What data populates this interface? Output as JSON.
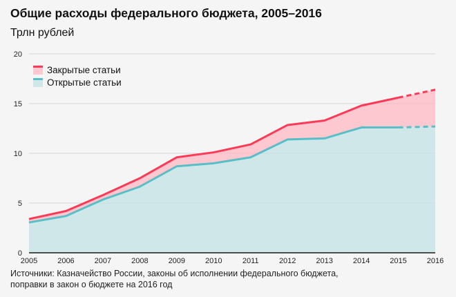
{
  "title": "Общие расходы федерального бюджета, 2005–2016",
  "subtitle": "Трлн рублей",
  "source": [
    "Источники: Казначейство России, законы об исполнении федерального бюджета,",
    "поправки в закон о бюджете на 2016 год"
  ],
  "chart_data": {
    "type": "area",
    "title": "Общие расходы федерального бюджета, 2005–2016",
    "ylabel": "Трлн рублей",
    "x": [
      2005,
      2006,
      2007,
      2008,
      2009,
      2010,
      2011,
      2012,
      2013,
      2014,
      2015,
      2016
    ],
    "xticks": [
      "2005",
      "2006",
      "2007",
      "2008",
      "2009",
      "2010",
      "2011",
      "2012",
      "2013",
      "2014",
      "2015",
      "2016"
    ],
    "ylim": [
      0,
      20
    ],
    "yticks": [
      "0",
      "5",
      "10",
      "15",
      "20"
    ],
    "grid": true,
    "legend": "top-left",
    "dashed_from": 2015,
    "series": [
      {
        "name": "Закрытые статьи",
        "color": "#ff3a57",
        "fill": "#fdc8d0",
        "values": [
          3.4,
          4.2,
          5.8,
          7.5,
          9.6,
          10.1,
          10.9,
          12.85,
          13.3,
          14.8,
          15.6,
          16.4
        ]
      },
      {
        "name": "Открытые статьи",
        "color": "#58bfc6",
        "fill": "#d0e7e9",
        "values": [
          3.05,
          3.7,
          5.35,
          6.65,
          8.7,
          9.0,
          9.6,
          11.4,
          11.5,
          12.6,
          12.6,
          12.7
        ]
      }
    ]
  }
}
